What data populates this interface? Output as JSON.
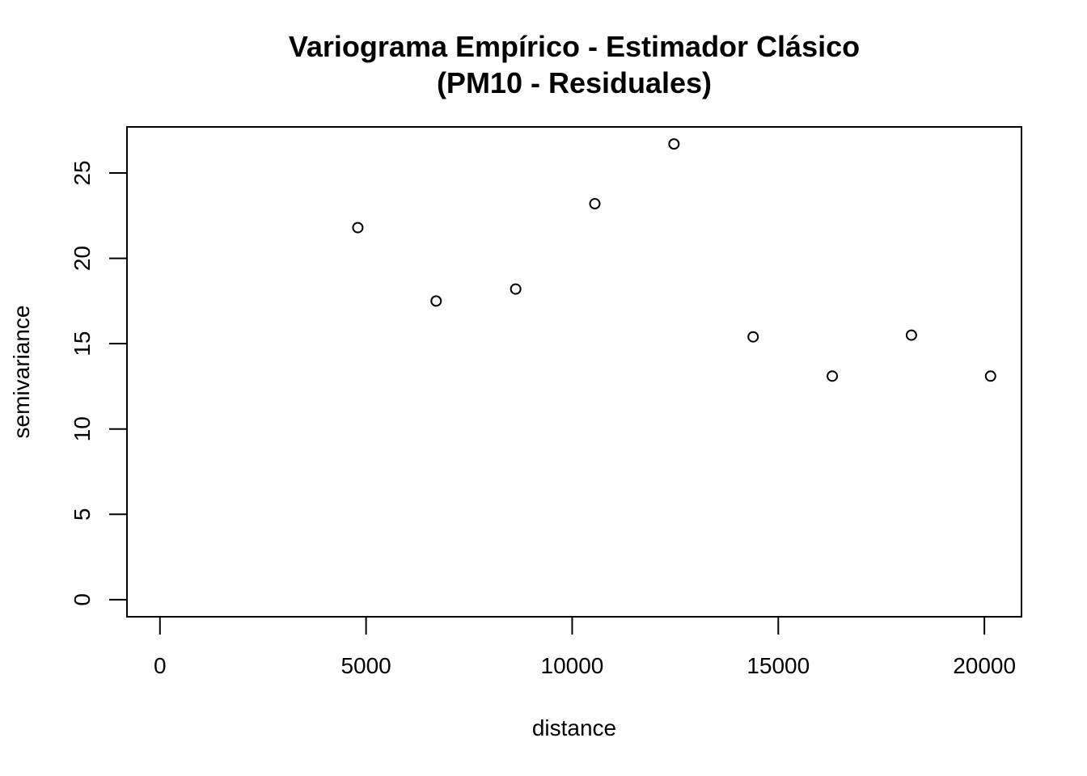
{
  "chart_data": {
    "type": "scatter",
    "title_lines": [
      "Variograma Empírico - Estimador Clásico",
      "(PM10 - Residuales)"
    ],
    "xlabel": "distance",
    "ylabel": "semivariance",
    "xlim": [
      -800,
      20900
    ],
    "ylim": [
      -1.0,
      27.7
    ],
    "xticks": [
      0,
      5000,
      10000,
      15000,
      20000
    ],
    "yticks": [
      0,
      5,
      10,
      15,
      20,
      25
    ],
    "xtick_labels": [
      "0",
      "5000",
      "10000",
      "15000",
      "20000"
    ],
    "ytick_labels": [
      "0",
      "5",
      "10",
      "15",
      "20",
      "25"
    ],
    "points": [
      {
        "x": 4800,
        "y": 21.8
      },
      {
        "x": 6700,
        "y": 17.5
      },
      {
        "x": 8630,
        "y": 18.2
      },
      {
        "x": 10550,
        "y": 23.2
      },
      {
        "x": 12470,
        "y": 26.7
      },
      {
        "x": 14390,
        "y": 15.4
      },
      {
        "x": 16310,
        "y": 13.1
      },
      {
        "x": 18230,
        "y": 15.5
      },
      {
        "x": 20150,
        "y": 13.1
      }
    ],
    "marker": "open-circle",
    "grid": false,
    "legend": "none"
  }
}
